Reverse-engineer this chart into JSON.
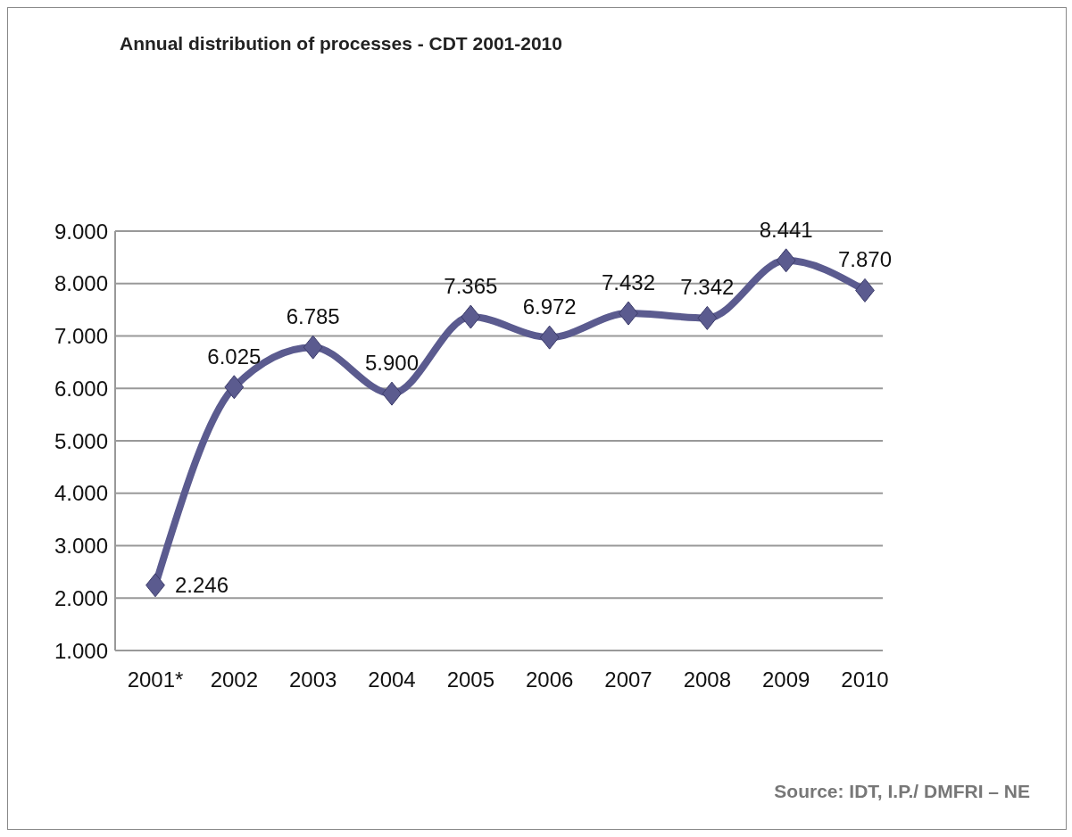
{
  "chart_data": {
    "type": "line",
    "title": "Annual distribution of processes - CDT 2001-2010",
    "categories": [
      "2001*",
      "2002",
      "2003",
      "2004",
      "2005",
      "2006",
      "2007",
      "2008",
      "2009",
      "2010"
    ],
    "values": [
      2246,
      6025,
      6785,
      5900,
      7365,
      6972,
      7432,
      7342,
      8441,
      7870
    ],
    "value_labels": [
      "2.246",
      "6.025",
      "6.785",
      "5.900",
      "7.365",
      "6.972",
      "7.432",
      "7.342",
      "8.441",
      "7.870"
    ],
    "color": "#5b5b8f",
    "marker": "diamond",
    "line_style": "solid",
    "ylim": [
      1000,
      9000
    ],
    "yticks": [
      {
        "value": 1000,
        "label": "1.000"
      },
      {
        "value": 2000,
        "label": "2.000"
      },
      {
        "value": 3000,
        "label": "3.000"
      },
      {
        "value": 4000,
        "label": "4.000"
      },
      {
        "value": 5000,
        "label": "5.000"
      },
      {
        "value": 6000,
        "label": "6.000"
      },
      {
        "value": 7000,
        "label": "7.000"
      },
      {
        "value": 8000,
        "label": "8.000"
      },
      {
        "value": 9000,
        "label": "9.000"
      }
    ],
    "grid": "y",
    "annotations": [
      "Source: IDT, I.P./ DMFRI – NE"
    ]
  }
}
